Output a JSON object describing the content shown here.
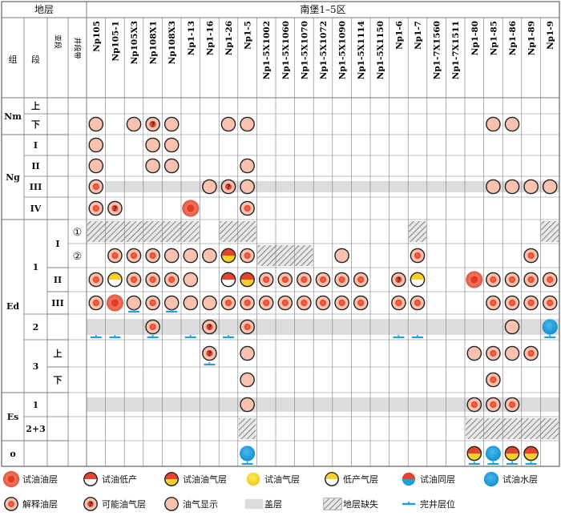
{
  "header": {
    "strata_label": "地层",
    "area_label": "南堡1–5区",
    "col_group": "组",
    "col_member": "段",
    "col_sub": "亚段",
    "col_zone": "井段带"
  },
  "wells": [
    "Np105",
    "Np105-1",
    "Np105X3",
    "Np108X1",
    "Np108X3",
    "Np1-13",
    "Np1-16",
    "Np1-26",
    "Np1-5",
    "Np1-5X1002",
    "Np1-5X1060",
    "Np1-5X1070",
    "Np1-5X1072",
    "Np1-5X1090",
    "Np1-5X1114",
    "Np1-5X1150",
    "Np1-6",
    "Np1-7",
    "Np1-7X1560",
    "Np1-7X1511",
    "Np1-80",
    "Np1-85",
    "Np1-86",
    "Np1-89",
    "Np1-9"
  ],
  "groups": [
    {
      "label": "Nm",
      "rows": [
        0,
        1
      ]
    },
    {
      "label": "Ng",
      "rows": [
        2,
        3,
        4,
        5
      ]
    },
    {
      "label": "Ed",
      "rows": [
        6,
        7,
        8,
        9,
        10,
        11,
        12
      ]
    },
    {
      "label": "Es",
      "rows": [
        13,
        14
      ]
    },
    {
      "label": "o",
      "rows": [
        15
      ]
    }
  ],
  "members": [
    {
      "label": "上",
      "rows": [
        0
      ]
    },
    {
      "label": "下",
      "rows": [
        1
      ]
    },
    {
      "label": "I",
      "rows": [
        2
      ]
    },
    {
      "label": "II",
      "rows": [
        3
      ]
    },
    {
      "label": "III",
      "rows": [
        4
      ]
    },
    {
      "label": "IV",
      "rows": [
        5
      ]
    },
    {
      "label": "1",
      "rows": [
        6,
        7,
        8,
        9
      ]
    },
    {
      "label": "2",
      "rows": [
        10
      ]
    },
    {
      "label": "3",
      "rows": [
        11,
        12
      ]
    },
    {
      "label": "1",
      "rows": [
        13
      ]
    },
    {
      "label": "2+3",
      "rows": [
        14
      ]
    },
    {
      "label": "",
      "rows": [
        15
      ]
    }
  ],
  "subs": [
    {
      "label": "I",
      "rows": [
        6,
        7
      ]
    },
    {
      "label": "II",
      "rows": [
        8
      ]
    },
    {
      "label": "III",
      "rows": [
        9
      ]
    },
    {
      "label": "上",
      "rows": [
        11
      ]
    },
    {
      "label": "下",
      "rows": [
        12
      ]
    }
  ],
  "zones": [
    {
      "label": "①",
      "row": 6
    },
    {
      "label": "②",
      "row": 7
    }
  ],
  "shade": [
    {
      "row": 4,
      "c0": 1,
      "c1": 24
    },
    {
      "row": 6,
      "c0": 0,
      "c1": 5
    },
    {
      "row": 6,
      "c0": 7,
      "c1": 8
    },
    {
      "row": 6,
      "c0": 17,
      "c1": 17
    },
    {
      "row": 6,
      "c0": 24,
      "c1": 24
    },
    {
      "row": 7,
      "c0": 9,
      "c1": 11
    },
    {
      "row": 10,
      "c0": 0,
      "c1": 24
    },
    {
      "row": 13,
      "c0": 0,
      "c1": 24
    }
  ],
  "hatch": [
    {
      "row": 6,
      "c0": 0,
      "c1": 5
    },
    {
      "row": 6,
      "c0": 7,
      "c1": 8
    },
    {
      "row": 6,
      "c0": 17,
      "c1": 17
    },
    {
      "row": 6,
      "c0": 24,
      "c1": 24
    },
    {
      "row": 7,
      "c0": 9,
      "c1": 11
    },
    {
      "row": 14,
      "c0": 8,
      "c1": 8
    },
    {
      "row": 14,
      "c0": 20,
      "c1": 24
    }
  ],
  "symbols": [
    {
      "row": 1,
      "col": 0,
      "t": "show"
    },
    {
      "row": 1,
      "col": 2,
      "t": "show"
    },
    {
      "row": 1,
      "col": 3,
      "t": "possible"
    },
    {
      "row": 1,
      "col": 4,
      "t": "show"
    },
    {
      "row": 1,
      "col": 7,
      "t": "show"
    },
    {
      "row": 1,
      "col": 8,
      "t": "show"
    },
    {
      "row": 1,
      "col": 21,
      "t": "show"
    },
    {
      "row": 1,
      "col": 22,
      "t": "show"
    },
    {
      "row": 2,
      "col": 0,
      "t": "show"
    },
    {
      "row": 2,
      "col": 3,
      "t": "show"
    },
    {
      "row": 2,
      "col": 4,
      "t": "show"
    },
    {
      "row": 3,
      "col": 0,
      "t": "show"
    },
    {
      "row": 3,
      "col": 3,
      "t": "show"
    },
    {
      "row": 3,
      "col": 4,
      "t": "show"
    },
    {
      "row": 3,
      "col": 8,
      "t": "show"
    },
    {
      "row": 4,
      "col": 0,
      "t": "interp"
    },
    {
      "row": 4,
      "col": 6,
      "t": "show"
    },
    {
      "row": 4,
      "col": 7,
      "t": "possible"
    },
    {
      "row": 4,
      "col": 8,
      "t": "show"
    },
    {
      "row": 4,
      "col": 21,
      "t": "show"
    },
    {
      "row": 4,
      "col": 22,
      "t": "show"
    },
    {
      "row": 4,
      "col": 23,
      "t": "show"
    },
    {
      "row": 4,
      "col": 24,
      "t": "show"
    },
    {
      "row": 5,
      "col": 0,
      "t": "interp"
    },
    {
      "row": 5,
      "col": 1,
      "t": "possible"
    },
    {
      "row": 5,
      "col": 5,
      "t": "oil"
    },
    {
      "row": 5,
      "col": 8,
      "t": "interp"
    },
    {
      "row": 7,
      "col": 1,
      "t": "interp"
    },
    {
      "row": 7,
      "col": 2,
      "t": "interp"
    },
    {
      "row": 7,
      "col": 3,
      "t": "interp"
    },
    {
      "row": 7,
      "col": 4,
      "t": "show"
    },
    {
      "row": 7,
      "col": 5,
      "t": "show"
    },
    {
      "row": 7,
      "col": 6,
      "t": "show"
    },
    {
      "row": 7,
      "col": 7,
      "t": "oilgas"
    },
    {
      "row": 7,
      "col": 8,
      "t": "interp"
    },
    {
      "row": 7,
      "col": 13,
      "t": "show"
    },
    {
      "row": 7,
      "col": 17,
      "t": "interp"
    },
    {
      "row": 7,
      "col": 23,
      "t": "interp"
    },
    {
      "row": 8,
      "col": 0,
      "t": "interp"
    },
    {
      "row": 8,
      "col": 1,
      "t": "lowgas"
    },
    {
      "row": 8,
      "col": 2,
      "t": "interp"
    },
    {
      "row": 8,
      "col": 3,
      "t": "interp"
    },
    {
      "row": 8,
      "col": 4,
      "t": "interp"
    },
    {
      "row": 8,
      "col": 5,
      "t": "show"
    },
    {
      "row": 8,
      "col": 7,
      "t": "lowoil"
    },
    {
      "row": 8,
      "col": 8,
      "t": "oilgas"
    },
    {
      "row": 8,
      "col": 9,
      "t": "interp"
    },
    {
      "row": 8,
      "col": 10,
      "t": "interp"
    },
    {
      "row": 8,
      "col": 11,
      "t": "interp"
    },
    {
      "row": 8,
      "col": 12,
      "t": "interp"
    },
    {
      "row": 8,
      "col": 13,
      "t": "interp"
    },
    {
      "row": 8,
      "col": 14,
      "t": "interp"
    },
    {
      "row": 8,
      "col": 16,
      "t": "possible"
    },
    {
      "row": 8,
      "col": 17,
      "t": "lowgas"
    },
    {
      "row": 8,
      "col": 20,
      "t": "oil"
    },
    {
      "row": 8,
      "col": 21,
      "t": "interp"
    },
    {
      "row": 8,
      "col": 22,
      "t": "interp"
    },
    {
      "row": 8,
      "col": 23,
      "t": "interp"
    },
    {
      "row": 8,
      "col": 24,
      "t": "interp"
    },
    {
      "row": 9,
      "col": 0,
      "t": "interp"
    },
    {
      "row": 9,
      "col": 1,
      "t": "oil"
    },
    {
      "row": 9,
      "col": 2,
      "t": "show"
    },
    {
      "row": 9,
      "col": 3,
      "t": "interp"
    },
    {
      "row": 9,
      "col": 4,
      "t": "show"
    },
    {
      "row": 9,
      "col": 5,
      "t": "show"
    },
    {
      "row": 9,
      "col": 6,
      "t": "show"
    },
    {
      "row": 9,
      "col": 7,
      "t": "interp"
    },
    {
      "row": 9,
      "col": 8,
      "t": "interp"
    },
    {
      "row": 9,
      "col": 9,
      "t": "interp"
    },
    {
      "row": 9,
      "col": 10,
      "t": "interp"
    },
    {
      "row": 9,
      "col": 11,
      "t": "interp"
    },
    {
      "row": 9,
      "col": 12,
      "t": "interp"
    },
    {
      "row": 9,
      "col": 13,
      "t": "interp"
    },
    {
      "row": 9,
      "col": 14,
      "t": "interp"
    },
    {
      "row": 9,
      "col": 16,
      "t": "interp"
    },
    {
      "row": 9,
      "col": 17,
      "t": "interp"
    },
    {
      "row": 9,
      "col": 21,
      "t": "interp"
    },
    {
      "row": 9,
      "col": 22,
      "t": "interp"
    },
    {
      "row": 9,
      "col": 23,
      "t": "interp"
    },
    {
      "row": 9,
      "col": 24,
      "t": "interp"
    },
    {
      "row": 10,
      "col": 3,
      "t": "interp"
    },
    {
      "row": 10,
      "col": 6,
      "t": "possible"
    },
    {
      "row": 10,
      "col": 8,
      "t": "interp"
    },
    {
      "row": 10,
      "col": 22,
      "t": "show"
    },
    {
      "row": 10,
      "col": 24,
      "t": "water"
    },
    {
      "row": 11,
      "col": 6,
      "t": "possible"
    },
    {
      "row": 11,
      "col": 8,
      "t": "show"
    },
    {
      "row": 11,
      "col": 21,
      "t": "interp"
    },
    {
      "row": 11,
      "col": 20,
      "t": "show"
    },
    {
      "row": 11,
      "col": 22,
      "t": "show"
    },
    {
      "row": 11,
      "col": 23,
      "t": "interp"
    },
    {
      "row": 12,
      "col": 8,
      "t": "show"
    },
    {
      "row": 12,
      "col": 21,
      "t": "interp"
    },
    {
      "row": 13,
      "col": 8,
      "t": "show"
    },
    {
      "row": 13,
      "col": 20,
      "t": "interp"
    },
    {
      "row": 13,
      "col": 21,
      "t": "interp"
    },
    {
      "row": 13,
      "col": 22,
      "t": "interp"
    },
    {
      "row": 15,
      "col": 8,
      "t": "water"
    },
    {
      "row": 15,
      "col": 20,
      "t": "oilgas"
    },
    {
      "row": 15,
      "col": 21,
      "t": "water"
    },
    {
      "row": 15,
      "col": 22,
      "t": "oilgas"
    },
    {
      "row": 15,
      "col": 23,
      "t": "oilgas"
    }
  ],
  "completions": [
    {
      "row": 9,
      "col": 2
    },
    {
      "row": 9,
      "col": 4
    },
    {
      "row": 10,
      "col": 0
    },
    {
      "row": 10,
      "col": 1
    },
    {
      "row": 10,
      "col": 3
    },
    {
      "row": 10,
      "col": 5
    },
    {
      "row": 10,
      "col": 7
    },
    {
      "row": 10,
      "col": 16
    },
    {
      "row": 10,
      "col": 17
    },
    {
      "row": 10,
      "col": 24
    },
    {
      "row": 11,
      "col": 6
    },
    {
      "row": 15,
      "col": 8
    },
    {
      "row": 15,
      "col": 20
    },
    {
      "row": 15,
      "col": 21
    },
    {
      "row": 15,
      "col": 22
    },
    {
      "row": 15,
      "col": 23
    }
  ],
  "legend": [
    {
      "t": "oil",
      "label": "试油油层"
    },
    {
      "t": "lowoil",
      "label": "试油低产"
    },
    {
      "t": "oilgas",
      "label": "试油油气层"
    },
    {
      "t": "gas",
      "label": "试油气层"
    },
    {
      "t": "lowgas",
      "label": "低产气层"
    },
    {
      "t": "oilwater",
      "label": "试油同层"
    },
    {
      "t": "water",
      "label": "试油水层"
    },
    {
      "t": "interp",
      "label": "解释油层"
    },
    {
      "t": "possible",
      "label": "可能油气层"
    },
    {
      "t": "show",
      "label": "油气显示"
    },
    {
      "t": "cap",
      "label": "盖层"
    },
    {
      "t": "missing",
      "label": "地层缺失"
    },
    {
      "t": "completion",
      "label": "完井层位"
    }
  ],
  "colors": {
    "oil": "#e4432e",
    "pink": "#f6b7a4",
    "gas": "#f7d12a",
    "water": "#1f9fdc",
    "grid": "#7a7a7a",
    "shade": "#dcdcdc"
  }
}
